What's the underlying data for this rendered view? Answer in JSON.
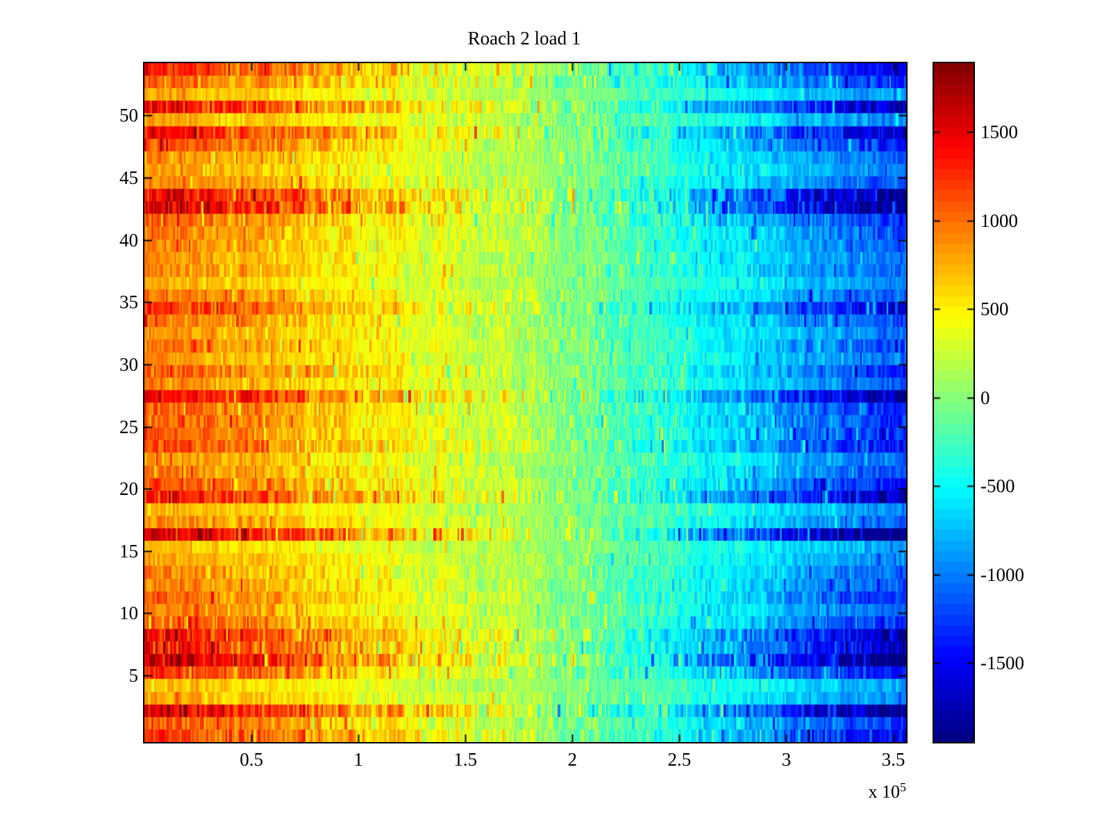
{
  "title": "Roach 2 load 1",
  "x_axis": {
    "tick_labels": [
      "0.5",
      "1",
      "1.5",
      "2",
      "2.5",
      "3",
      "3.5"
    ],
    "tick_values_e5": [
      0.5,
      1,
      1.5,
      2,
      2.5,
      3,
      3.5
    ],
    "exponent_prefix": "x 10",
    "exponent": "5",
    "max_e5": 3.56
  },
  "y_axis": {
    "tick_labels": [
      "5",
      "10",
      "15",
      "20",
      "25",
      "30",
      "35",
      "40",
      "45",
      "50"
    ],
    "tick_values": [
      5,
      10,
      15,
      20,
      25,
      30,
      35,
      40,
      45,
      50
    ]
  },
  "colorbar": {
    "tick_labels": [
      "1500",
      "1000",
      "500",
      "0",
      "-500",
      "-1000",
      "-1500"
    ],
    "tick_values": [
      1500,
      1000,
      500,
      0,
      -500,
      -1000,
      -1500
    ]
  },
  "chart_data": {
    "type": "heatmap",
    "title": "Roach 2 load 1",
    "x_range": [
      0,
      356000
    ],
    "x_tick_values": [
      50000,
      100000,
      150000,
      200000,
      250000,
      300000,
      350000
    ],
    "x_scale_exponent": 5,
    "n_rows": 54,
    "y_tick_values": [
      5,
      10,
      15,
      20,
      25,
      30,
      35,
      40,
      45,
      50
    ],
    "colormap": "jet",
    "n_colormap_levels": 64,
    "color_range": [
      -1950,
      1890
    ],
    "colorbar_tick_values": [
      1500,
      1000,
      500,
      0,
      -500,
      -1000,
      -1500
    ],
    "gradient_profile": [
      [
        0,
        1150
      ],
      [
        0.5,
        150
      ],
      [
        0.75,
        -580
      ],
      [
        1,
        -1380
      ]
    ],
    "row_amplitudes": [
      1.15,
      1.0,
      1.45,
      0.75,
      0.65,
      1.1,
      1.5,
      1.25,
      1.3,
      1.0,
      0.85,
      0.95,
      0.9,
      0.85,
      0.75,
      0.65,
      1.5,
      0.85,
      0.7,
      1.3,
      1.05,
      0.9,
      0.8,
      1.1,
      1.0,
      1.0,
      1.0,
      1.35,
      0.85,
      1.0,
      0.8,
      0.9,
      0.8,
      0.9,
      1.15,
      0.9,
      0.7,
      0.85,
      0.8,
      0.85,
      0.9,
      1.0,
      1.45,
      1.4,
      0.9,
      0.75,
      0.85,
      1.05,
      1.3,
      0.75,
      1.35,
      0.7,
      1.0,
      1.2
    ],
    "noise_amplitude": 330
  }
}
